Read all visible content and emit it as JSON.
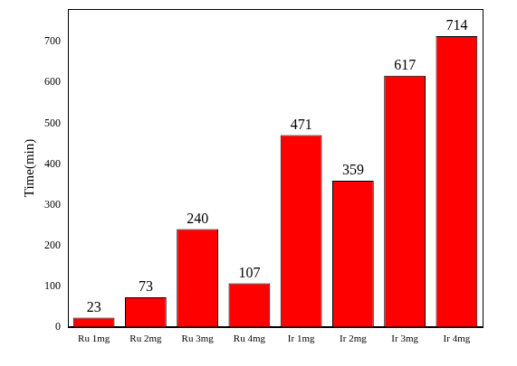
{
  "chart_data": {
    "type": "bar",
    "y_label": "Time(min)",
    "categories": [
      "Ru 1mg",
      "Ru 2mg",
      "Ru 3mg",
      "Ru 4mg",
      "Ir 1mg",
      "Ir 2mg",
      "Ir 3mg",
      "Ir 4mg"
    ],
    "values": [
      23,
      73,
      240,
      107,
      471,
      359,
      617,
      714
    ],
    "color": "#ff0000",
    "ylim": [
      0,
      780
    ],
    "yticks": [
      0,
      100,
      200,
      300,
      400,
      500,
      600,
      700
    ],
    "grid": false,
    "data_labels": true
  }
}
